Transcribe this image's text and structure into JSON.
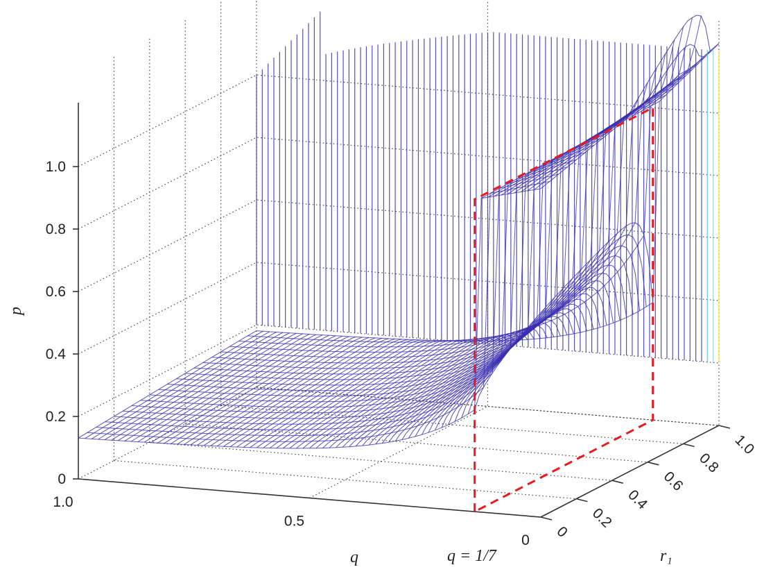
{
  "chart_data": {
    "type": "surface",
    "title": "",
    "xlabel": "q",
    "ylabel": "r₁",
    "zlabel": "p",
    "xlim": [
      0,
      1
    ],
    "ylim": [
      0,
      1
    ],
    "zlim": [
      0,
      1.2
    ],
    "x_ticks": [
      "0",
      "0.5",
      "1.0"
    ],
    "y_ticks": [
      "0",
      "0.2",
      "0.4",
      "0.6",
      "0.8",
      "1.0"
    ],
    "z_ticks": [
      "0",
      "0.2",
      "0.4",
      "0.6",
      "0.8",
      "1.0"
    ],
    "grid": true,
    "annotation": {
      "text": "q = 1/7",
      "q": 0.142857,
      "p_level": 1.0,
      "color": "#e8191f",
      "style": "dashed"
    },
    "surface_color": "#3a2fb0",
    "surface_description_points": [
      {
        "q": 1.0,
        "r1": 0.0,
        "p": 0.14
      },
      {
        "q": 1.0,
        "r1": 1.0,
        "p": 0.2
      },
      {
        "q": 0.142857,
        "r1": 0.0,
        "p": 1.0
      },
      {
        "q": 0.0,
        "r1": 0.0,
        "p": 1.0
      }
    ]
  }
}
